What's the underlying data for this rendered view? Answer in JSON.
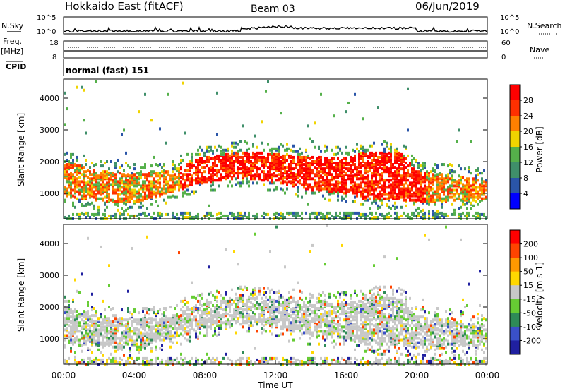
{
  "header": {
    "title": "Hokkaido East (fitACF)",
    "beam": "Beam 03",
    "date": "06/Jun/2019"
  },
  "left_labels": {
    "nsky": "N.Sky",
    "freq_line1": "Freq.",
    "freq_line2": "[MHz]",
    "cpid": "CPID"
  },
  "right_labels": {
    "nsearch": "N.Search",
    "nave": "Nave"
  },
  "noise_axis": {
    "left_top": "10^5",
    "left_bottom": "10^0",
    "right_top": "10^5",
    "right_bottom": "10^0"
  },
  "freq_axis": {
    "left_top": "18",
    "left_bottom": "8",
    "right_top": "60",
    "right_bottom": "0"
  },
  "cpid_text": "normal (fast) 151",
  "x_axis": {
    "label": "Time UT",
    "ticks": [
      "00:00",
      "04:00",
      "08:00",
      "12:00",
      "16:00",
      "20:00",
      "00:00"
    ]
  },
  "chart_data": [
    {
      "type": "heatmap",
      "name": "power-panel",
      "ylabel": "Slant Range [km]",
      "ylim": [
        200,
        4600
      ],
      "y_ticks": [
        "1000",
        "2000",
        "3000",
        "4000"
      ],
      "colorbar": {
        "label": "Power [dB]",
        "ticks": [
          "28",
          "24",
          "20",
          "16",
          "12",
          "8",
          "4"
        ]
      },
      "colors": [
        "#0000ff",
        "#2a55a8",
        "#3f8f6a",
        "#55b04a",
        "#f0d400",
        "#ff8000",
        "#ff3000",
        "#ff0000"
      ],
      "band_upper_km": [
        [
          0,
          2000
        ],
        [
          2,
          1700
        ],
        [
          4,
          1600
        ],
        [
          6,
          1700
        ],
        [
          7.5,
          2100
        ],
        [
          10,
          2300
        ],
        [
          12,
          2250
        ],
        [
          14,
          2150
        ],
        [
          16,
          2100
        ],
        [
          17,
          2300
        ],
        [
          19,
          2300
        ],
        [
          20,
          1700
        ],
        [
          24,
          1400
        ]
      ],
      "band_lower_km": [
        [
          0,
          900
        ],
        [
          2,
          750
        ],
        [
          4,
          700
        ],
        [
          6,
          1000
        ],
        [
          7.5,
          1300
        ],
        [
          10,
          1500
        ],
        [
          12,
          1350
        ],
        [
          14,
          1100
        ],
        [
          16,
          1000
        ],
        [
          17,
          800
        ],
        [
          19,
          800
        ],
        [
          20,
          700
        ],
        [
          24,
          800
        ]
      ]
    },
    {
      "type": "heatmap",
      "name": "velocity-panel",
      "ylabel": "Slant Range [km]",
      "ylim": [
        200,
        4600
      ],
      "y_ticks": [
        "1000",
        "2000",
        "3000",
        "4000"
      ],
      "colorbar": {
        "label": "Velocity [m s-1]",
        "ticks": [
          "200",
          "100",
          "50",
          "15",
          "-15",
          "-50",
          "-100",
          "-200"
        ]
      },
      "colors": [
        "#2020a0",
        "#3a50c8",
        "#2e8b57",
        "#66cc33",
        "#c8c8c8",
        "#ffd700",
        "#ff9900",
        "#ff4400",
        "#ff0000"
      ]
    }
  ]
}
